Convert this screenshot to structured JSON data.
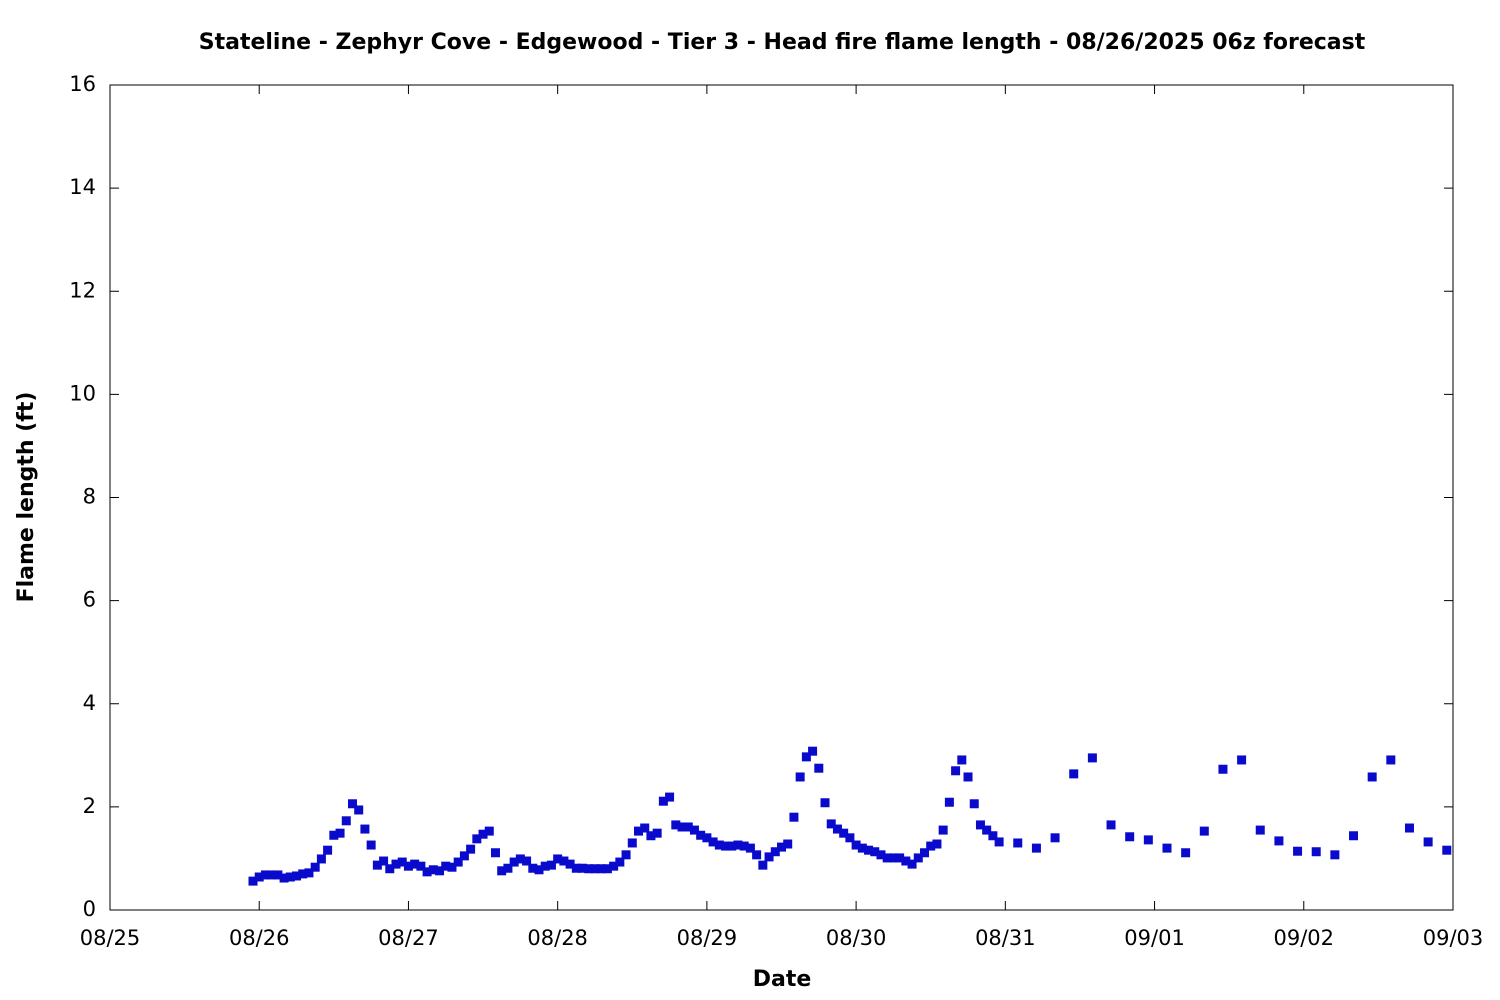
{
  "chart_data": {
    "type": "scatter",
    "title": "Stateline - Zephyr Cove - Edgewood - Tier 3 - Head fire flame length - 08/26/2025 06z forecast",
    "xlabel": "Date",
    "ylabel": "Flame length (ft)",
    "xlim": [
      0,
      216
    ],
    "ylim": [
      0,
      16
    ],
    "xticks": [
      {
        "value": 0,
        "label": "08/25"
      },
      {
        "value": 24,
        "label": "08/26"
      },
      {
        "value": 48,
        "label": "08/27"
      },
      {
        "value": 72,
        "label": "08/28"
      },
      {
        "value": 96,
        "label": "08/29"
      },
      {
        "value": 120,
        "label": "08/30"
      },
      {
        "value": 144,
        "label": "08/31"
      },
      {
        "value": 168,
        "label": "09/01"
      },
      {
        "value": 192,
        "label": "09/02"
      },
      {
        "value": 216,
        "label": "09/03"
      }
    ],
    "yticks": [
      0,
      2,
      4,
      6,
      8,
      10,
      12,
      14,
      16
    ],
    "color": "#0a0acc",
    "x": [
      23,
      24,
      25,
      26,
      27,
      28,
      29,
      30,
      31,
      32,
      33,
      34,
      35,
      36,
      37,
      38,
      39,
      40,
      41,
      42,
      43,
      44,
      45,
      46,
      47,
      48,
      49,
      50,
      51,
      52,
      53,
      54,
      55,
      56,
      57,
      58,
      59,
      60,
      61,
      62,
      63,
      64,
      65,
      66,
      67,
      68,
      69,
      70,
      71,
      72,
      73,
      74,
      75,
      76,
      77,
      78,
      79,
      80,
      81,
      82,
      83,
      84,
      85,
      86,
      87,
      88,
      89,
      90,
      91,
      92,
      93,
      94,
      95,
      96,
      97,
      98,
      99,
      100,
      101,
      102,
      103,
      104,
      105,
      106,
      107,
      108,
      109,
      110,
      111,
      112,
      113,
      114,
      115,
      116,
      117,
      118,
      119,
      120,
      121,
      122,
      123,
      124,
      125,
      126,
      127,
      128,
      129,
      130,
      131,
      132,
      133,
      134,
      135,
      136,
      137,
      138,
      139,
      140,
      141,
      142,
      143,
      146,
      149,
      152,
      155,
      158,
      161,
      164,
      167,
      170,
      173,
      176,
      179,
      182,
      185,
      188,
      191,
      194,
      197,
      200,
      203,
      206,
      209,
      212,
      215
    ],
    "values": [
      0.56,
      0.64,
      0.68,
      0.68,
      0.68,
      0.62,
      0.64,
      0.66,
      0.7,
      0.72,
      0.83,
      0.99,
      1.16,
      1.45,
      1.49,
      1.73,
      2.06,
      1.94,
      1.57,
      1.26,
      0.87,
      0.95,
      0.8,
      0.89,
      0.93,
      0.85,
      0.89,
      0.85,
      0.74,
      0.78,
      0.76,
      0.85,
      0.83,
      0.93,
      1.05,
      1.18,
      1.38,
      1.47,
      1.53,
      1.11,
      0.76,
      0.81,
      0.93,
      0.99,
      0.95,
      0.81,
      0.78,
      0.85,
      0.87,
      0.99,
      0.95,
      0.89,
      0.81,
      0.81,
      0.8,
      0.8,
      0.8,
      0.8,
      0.85,
      0.93,
      1.07,
      1.3,
      1.53,
      1.59,
      1.44,
      1.49,
      2.11,
      2.19,
      1.65,
      1.61,
      1.61,
      1.55,
      1.45,
      1.4,
      1.32,
      1.26,
      1.24,
      1.24,
      1.26,
      1.24,
      1.2,
      1.07,
      0.87,
      1.03,
      1.13,
      1.22,
      1.28,
      1.8,
      2.58,
      2.97,
      3.08,
      2.75,
      2.08,
      1.67,
      1.57,
      1.49,
      1.4,
      1.26,
      1.2,
      1.16,
      1.13,
      1.07,
      1.01,
      1.01,
      1.01,
      0.95,
      0.89,
      1.01,
      1.11,
      1.24,
      1.28,
      1.55,
      2.09,
      2.7,
      2.91,
      2.58,
      2.06,
      1.65,
      1.55,
      1.44,
      1.32,
      1.3,
      1.2,
      1.4,
      2.64,
      2.95,
      1.65,
      1.42,
      1.36,
      1.2,
      1.11,
      1.53,
      2.73,
      2.91,
      1.55,
      1.34,
      1.14,
      1.13,
      1.07,
      1.44,
      2.58,
      2.91,
      1.59,
      1.32,
      1.16
    ]
  }
}
